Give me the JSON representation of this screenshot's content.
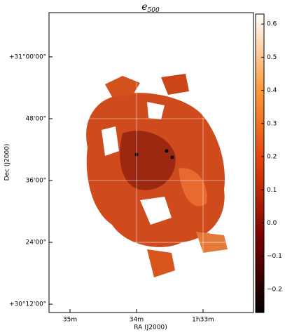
{
  "chart_data": {
    "type": "image",
    "title": "e",
    "title_subscript": "500",
    "x_label": "RA (J2000)",
    "y_label": "Dec (J2000)",
    "xlim": [
      35.316,
      32.242
    ],
    "xticks": [
      {
        "value": 35,
        "label": "35m"
      },
      {
        "value": 34,
        "label": "34m"
      },
      {
        "value": 33,
        "label": "1h33m"
      }
    ],
    "ylim": [
      30.173,
      31.143
    ],
    "yticks": [
      {
        "value": 31.0,
        "label": "+31°00'00\""
      },
      {
        "value": 30.8,
        "label": "48'00\""
      },
      {
        "value": 30.6,
        "label": "36'00\""
      },
      {
        "value": 30.4,
        "label": "24'00\""
      },
      {
        "value": 30.2,
        "label": "+30°12'00\""
      }
    ],
    "grid": true,
    "colorbar": {
      "lim": [
        -0.27,
        0.63
      ],
      "ticks": [
        0.6,
        0.5,
        0.4,
        0.3,
        0.2,
        0.1,
        {
          "value": 0,
          "label": "0.0"
        },
        {
          "value": -0.1,
          "label": "−0.1"
        },
        {
          "value": -0.2,
          "label": "−0.2"
        }
      ],
      "colors": [
        "#000000",
        "#7a0000",
        "#e0400a",
        "#ff9a3a",
        "#ffffff"
      ]
    }
  }
}
